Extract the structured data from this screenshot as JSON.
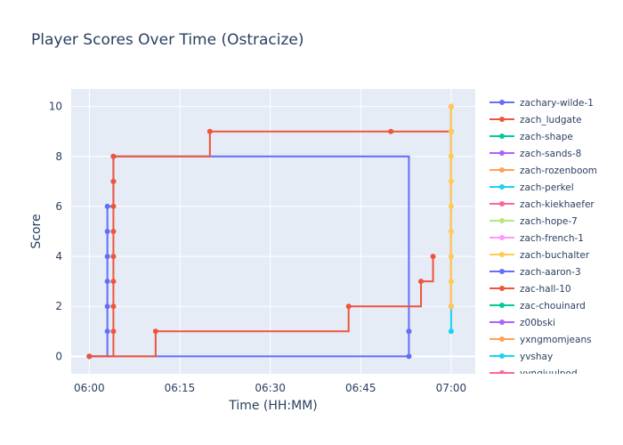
{
  "chart_data": {
    "type": "line",
    "line_shape": "step",
    "title": "Player Scores Over Time (Ostracize)",
    "xlabel": "Time (HH:MM)",
    "ylabel": "Score",
    "x_unit": "time",
    "xlim": [
      "05:57",
      "07:04"
    ],
    "ylim": [
      -0.7,
      10.7
    ],
    "x_ticks": [
      "06:00",
      "06:15",
      "06:30",
      "06:45",
      "07:00"
    ],
    "y_ticks": [
      0,
      2,
      4,
      6,
      8,
      10
    ],
    "grid": true,
    "legend_position": "right",
    "plot_bg": "#E5ECF6",
    "series": [
      {
        "name": "zachary-wilde-1",
        "color": "#636EFA",
        "points": [
          [
            "06:00",
            0
          ],
          [
            "06:03",
            1
          ],
          [
            "06:03",
            2
          ],
          [
            "06:03",
            3
          ],
          [
            "06:03",
            4
          ],
          [
            "06:03",
            5
          ],
          [
            "06:03",
            6
          ],
          [
            "06:04",
            7
          ],
          [
            "06:04",
            8
          ],
          [
            "06:53",
            1
          ]
        ]
      },
      {
        "name": "zach_ludgate",
        "color": "#EF553B",
        "points": [
          [
            "06:00",
            0
          ],
          [
            "06:04",
            1
          ],
          [
            "06:04",
            2
          ],
          [
            "06:04",
            3
          ],
          [
            "06:04",
            4
          ],
          [
            "06:04",
            5
          ],
          [
            "06:04",
            6
          ],
          [
            "06:04",
            7
          ],
          [
            "06:04",
            8
          ],
          [
            "06:20",
            9
          ],
          [
            "06:50",
            9
          ],
          [
            "07:00",
            9
          ]
        ]
      },
      {
        "name": "zach-shape",
        "color": "#00CC96",
        "points": [
          [
            "07:00",
            2
          ],
          [
            "07:00",
            10
          ]
        ]
      },
      {
        "name": "zach-sands-8",
        "color": "#AB63FA",
        "points": [
          [
            "07:00",
            2
          ],
          [
            "07:00",
            10
          ]
        ]
      },
      {
        "name": "zach-rozenboom",
        "color": "#FFA15A",
        "points": [
          [
            "07:00",
            2
          ],
          [
            "07:00",
            10
          ]
        ]
      },
      {
        "name": "zach-perkel",
        "color": "#19D3F3",
        "points": [
          [
            "07:00",
            1
          ],
          [
            "07:00",
            2
          ]
        ]
      },
      {
        "name": "zach-kiekhaefer",
        "color": "#FF6692",
        "points": [
          [
            "07:00",
            2
          ],
          [
            "07:00",
            10
          ]
        ]
      },
      {
        "name": "zach-hope-7",
        "color": "#B6E880",
        "points": [
          [
            "07:00",
            3
          ],
          [
            "07:00",
            10
          ]
        ]
      },
      {
        "name": "zach-french-1",
        "color": "#FF97FF",
        "points": [
          [
            "07:00",
            2
          ],
          [
            "07:00",
            10
          ]
        ]
      },
      {
        "name": "zach-buchalter",
        "color": "#FECB52",
        "points": [
          [
            "07:00",
            2
          ],
          [
            "07:00",
            3
          ],
          [
            "07:00",
            4
          ],
          [
            "07:00",
            5
          ],
          [
            "07:00",
            6
          ],
          [
            "07:00",
            7
          ],
          [
            "07:00",
            8
          ],
          [
            "07:00",
            9
          ],
          [
            "07:00",
            10
          ]
        ]
      },
      {
        "name": "zach-aaron-3",
        "color": "#636EFA",
        "points": [
          [
            "06:00",
            0
          ],
          [
            "06:53",
            0
          ],
          [
            "06:53",
            1
          ]
        ]
      },
      {
        "name": "zac-hall-10",
        "color": "#EF553B",
        "points": [
          [
            "06:00",
            0
          ],
          [
            "06:11",
            1
          ],
          [
            "06:43",
            2
          ],
          [
            "06:55",
            3
          ],
          [
            "06:57",
            4
          ]
        ]
      },
      {
        "name": "zac-chouinard",
        "color": "#00CC96",
        "points": []
      },
      {
        "name": "z00bski",
        "color": "#AB63FA",
        "points": []
      },
      {
        "name": "yxngmomjeans",
        "color": "#FFA15A",
        "points": []
      },
      {
        "name": "yvshay",
        "color": "#19D3F3",
        "points": []
      },
      {
        "name": "yyngiuulpod",
        "color": "#FF6692",
        "points": []
      }
    ]
  }
}
